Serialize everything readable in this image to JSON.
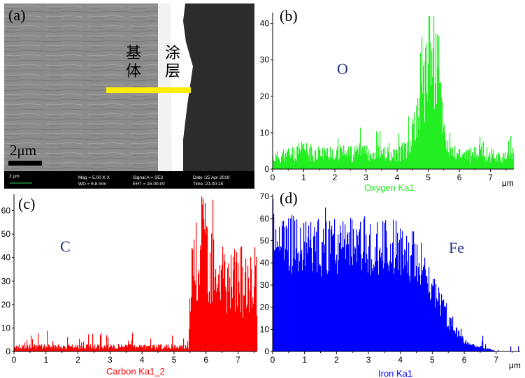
{
  "figure": {
    "panel_a": {
      "letter": "(a)",
      "substrate_label": [
        "基",
        "体"
      ],
      "coating_label": [
        "涂",
        "层"
      ],
      "scale_bar": "2μm",
      "info_bar": {
        "scale": "2 μm",
        "mag": "Mag =   5.00 K X",
        "wd": "WD =   6.8 mm",
        "signal": "Signal A = SE2",
        "eht": "EHT = 15.00 kV",
        "date": "Date :25 Apr 2019",
        "time": "Time :21:00:18"
      },
      "colors": {
        "line_scan": "#ffee00"
      }
    },
    "colors": {
      "oxygen": "#22ee22",
      "carbon": "#ff0000",
      "iron": "#0000ff",
      "element_label": "#1f2f7a"
    }
  },
  "chart_data": [
    {
      "type": "bar",
      "panel": "(b)",
      "element_label": "O",
      "xlabel": "Oxygen Ka1",
      "x_unit": "μm",
      "xlim": [
        0,
        7.75
      ],
      "ylim": [
        0,
        43
      ],
      "xticks": [
        0,
        1,
        2,
        3,
        4,
        5,
        6,
        7
      ],
      "yticks": [
        0,
        10,
        20,
        30,
        40
      ],
      "profile": [
        [
          0.0,
          3
        ],
        [
          0.5,
          4
        ],
        [
          1.0,
          5
        ],
        [
          1.5,
          4
        ],
        [
          2.0,
          5
        ],
        [
          2.5,
          4
        ],
        [
          3.0,
          5
        ],
        [
          3.5,
          4
        ],
        [
          4.0,
          4
        ],
        [
          4.4,
          6
        ],
        [
          4.6,
          12
        ],
        [
          4.75,
          22
        ],
        [
          4.9,
          28
        ],
        [
          5.05,
          34
        ],
        [
          5.2,
          30
        ],
        [
          5.35,
          24
        ],
        [
          5.5,
          12
        ],
        [
          5.65,
          5
        ],
        [
          6.0,
          4
        ],
        [
          6.5,
          4
        ],
        [
          7.0,
          4
        ],
        [
          7.5,
          3
        ],
        [
          7.75,
          3
        ]
      ],
      "noise": 0.55,
      "peak_value": 42
    },
    {
      "type": "bar",
      "panel": "(c)",
      "element_label": "C",
      "xlabel": "Carbon Ka1_2",
      "x_unit": "",
      "xlim": [
        0,
        7.6
      ],
      "ylim": [
        0,
        67
      ],
      "xticks": [
        0,
        1,
        2,
        3,
        4,
        5,
        6,
        7
      ],
      "yticks": [
        0,
        10,
        20,
        30,
        40,
        50,
        60
      ],
      "profile": [
        [
          0.0,
          2
        ],
        [
          1.0,
          2
        ],
        [
          2.0,
          2
        ],
        [
          3.0,
          2
        ],
        [
          4.0,
          2
        ],
        [
          5.0,
          2
        ],
        [
          5.45,
          2
        ],
        [
          5.52,
          28
        ],
        [
          5.7,
          40
        ],
        [
          5.9,
          44
        ],
        [
          6.1,
          44
        ],
        [
          6.3,
          40
        ],
        [
          6.5,
          34
        ],
        [
          6.8,
          30
        ],
        [
          7.1,
          30
        ],
        [
          7.4,
          30
        ],
        [
          7.6,
          30
        ]
      ],
      "noise": 0.55,
      "peak_value": 65
    },
    {
      "type": "bar",
      "panel": "(d)",
      "element_label": "Fe",
      "xlabel": "Iron Ka1",
      "x_unit": "μm",
      "xlim": [
        0,
        7.75
      ],
      "ylim": [
        0,
        71
      ],
      "xticks": [
        0,
        1,
        2,
        3,
        4,
        5,
        6,
        7
      ],
      "yticks": [
        0,
        10,
        20,
        30,
        40,
        50,
        60,
        70
      ],
      "profile": [
        [
          0.0,
          50
        ],
        [
          0.5,
          49
        ],
        [
          1.0,
          48
        ],
        [
          1.5,
          47
        ],
        [
          2.0,
          47
        ],
        [
          2.5,
          48
        ],
        [
          3.0,
          48
        ],
        [
          3.5,
          47
        ],
        [
          4.0,
          46
        ],
        [
          4.5,
          42
        ],
        [
          4.8,
          36
        ],
        [
          5.0,
          30
        ],
        [
          5.2,
          24
        ],
        [
          5.4,
          17
        ],
        [
          5.6,
          12
        ],
        [
          5.8,
          8
        ],
        [
          6.0,
          5
        ],
        [
          6.2,
          3
        ],
        [
          6.5,
          2
        ],
        [
          6.8,
          1
        ],
        [
          7.0,
          0
        ],
        [
          7.75,
          0
        ]
      ],
      "noise": 0.28,
      "peak_value": 69
    }
  ]
}
